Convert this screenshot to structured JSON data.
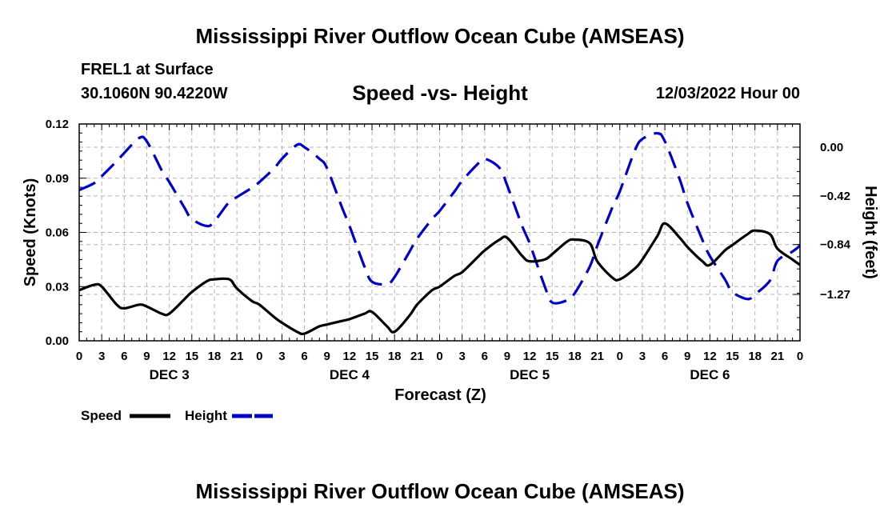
{
  "header": {
    "title": "Mississippi River Outflow Ocean Cube (AMSEAS)",
    "station": "FREL1 at Surface",
    "coordinates": "30.1060N  90.4220W",
    "subtitle": "Speed -vs- Height",
    "datetime": "12/03/2022 Hour 00"
  },
  "footer": {
    "title": "Mississippi River Outflow Ocean Cube (AMSEAS)"
  },
  "colors": {
    "speed": "#000000",
    "height": "#0000cc",
    "grid": "#b4b4b4"
  },
  "chart_data": {
    "type": "line",
    "title": "Speed -vs- Height",
    "xlabel": "Forecast (Z)",
    "ylabel": "Speed (Knots)",
    "y2label": "Height (feet)",
    "x_range": [
      0,
      96
    ],
    "ylim": [
      0,
      0.12
    ],
    "y_ticks": [
      0.0,
      0.03,
      0.06,
      0.09,
      0.12
    ],
    "y_tick_labels": [
      "0.00",
      "0.03",
      "0.06",
      "0.09",
      "0.12"
    ],
    "y2lim": [
      -1.67,
      0.2
    ],
    "y2_ticks": [
      0.0,
      -0.42,
      -0.84,
      -1.27
    ],
    "y2_tick_labels": [
      "0.00",
      "−0.42",
      "−0.84",
      "−1.27"
    ],
    "x_ticks": [
      0,
      3,
      6,
      9,
      12,
      15,
      18,
      21,
      24,
      27,
      30,
      33,
      36,
      39,
      42,
      45,
      48,
      51,
      54,
      57,
      60,
      63,
      66,
      69,
      72,
      75,
      78,
      81,
      84,
      87,
      90,
      93,
      96
    ],
    "x_tick_labels": [
      "0",
      "3",
      "6",
      "9",
      "12",
      "15",
      "18",
      "21",
      "0",
      "3",
      "6",
      "9",
      "12",
      "15",
      "18",
      "21",
      "0",
      "3",
      "6",
      "9",
      "12",
      "15",
      "18",
      "21",
      "0",
      "3",
      "6",
      "9",
      "12",
      "15",
      "18",
      "21",
      "0"
    ],
    "day_labels": [
      {
        "label": "DEC 3",
        "x": 12
      },
      {
        "label": "DEC 4",
        "x": 36
      },
      {
        "label": "DEC 5",
        "x": 60
      },
      {
        "label": "DEC 6",
        "x": 84
      }
    ],
    "legend": [
      {
        "name": "Speed",
        "style": "solid"
      },
      {
        "name": "Height",
        "style": "dashed"
      }
    ],
    "series": [
      {
        "name": "Speed",
        "axis": "left",
        "style": "solid",
        "x": [
          0,
          2,
          3,
          5,
          6,
          8,
          9,
          11,
          12,
          14,
          15,
          17,
          18,
          20,
          21,
          23,
          24,
          26,
          27,
          29,
          30,
          32,
          33,
          35,
          36,
          38,
          39,
          41,
          42,
          44,
          45,
          47,
          48,
          50,
          51,
          53,
          54,
          56,
          57,
          59,
          60,
          62,
          63,
          65,
          66,
          68,
          69,
          71,
          72,
          74,
          75,
          77,
          78,
          80,
          81,
          83,
          84,
          86,
          87,
          89,
          90,
          92,
          93,
          95,
          96
        ],
        "values": [
          0.028,
          0.031,
          0.03,
          0.02,
          0.018,
          0.02,
          0.019,
          0.015,
          0.015,
          0.023,
          0.027,
          0.033,
          0.034,
          0.034,
          0.029,
          0.022,
          0.02,
          0.013,
          0.01,
          0.005,
          0.004,
          0.008,
          0.009,
          0.011,
          0.012,
          0.015,
          0.016,
          0.008,
          0.005,
          0.014,
          0.02,
          0.028,
          0.03,
          0.036,
          0.038,
          0.046,
          0.05,
          0.056,
          0.057,
          0.047,
          0.044,
          0.045,
          0.048,
          0.055,
          0.056,
          0.054,
          0.044,
          0.035,
          0.034,
          0.04,
          0.045,
          0.058,
          0.065,
          0.057,
          0.052,
          0.044,
          0.042,
          0.05,
          0.053,
          0.059,
          0.061,
          0.059,
          0.051,
          0.045,
          0.042
        ]
      },
      {
        "name": "Height",
        "axis": "right",
        "style": "dashed",
        "x": [
          0,
          2,
          3,
          5,
          6,
          8,
          9,
          11,
          12,
          14,
          15,
          17,
          18,
          20,
          21,
          23,
          24,
          26,
          27,
          29,
          30,
          32,
          33,
          35,
          36,
          38,
          39,
          41,
          42,
          44,
          45,
          47,
          48,
          50,
          51,
          53,
          54,
          56,
          57,
          59,
          60,
          62,
          63,
          65,
          66,
          68,
          69,
          71,
          72,
          74,
          75,
          77,
          78,
          80,
          81,
          83,
          84,
          86,
          87,
          89,
          90,
          92,
          93,
          95,
          96
        ],
        "values": [
          -0.37,
          -0.31,
          -0.25,
          -0.12,
          -0.05,
          0.08,
          0.05,
          -0.2,
          -0.3,
          -0.52,
          -0.62,
          -0.68,
          -0.64,
          -0.47,
          -0.43,
          -0.35,
          -0.3,
          -0.18,
          -0.1,
          0.02,
          0.0,
          -0.1,
          -0.18,
          -0.52,
          -0.68,
          -1.03,
          -1.16,
          -1.18,
          -1.12,
          -0.9,
          -0.79,
          -0.62,
          -0.55,
          -0.38,
          -0.29,
          -0.15,
          -0.1,
          -0.18,
          -0.33,
          -0.68,
          -0.83,
          -1.2,
          -1.34,
          -1.32,
          -1.26,
          -1.03,
          -0.85,
          -0.52,
          -0.38,
          -0.03,
          0.07,
          0.12,
          0.05,
          -0.28,
          -0.48,
          -0.8,
          -0.94,
          -1.14,
          -1.25,
          -1.31,
          -1.27,
          -1.15,
          -0.98,
          -0.9,
          -0.85
        ]
      }
    ]
  }
}
